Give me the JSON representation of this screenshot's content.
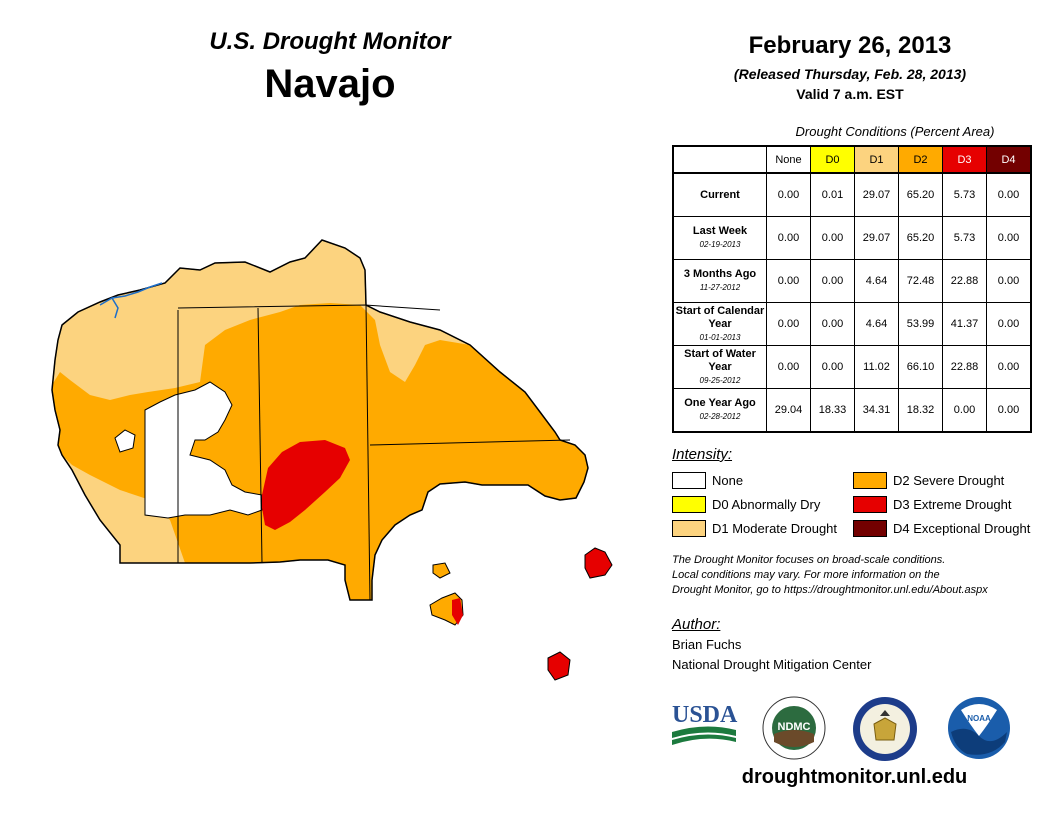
{
  "header": {
    "subtitle": "U.S. Drought Monitor",
    "title": "Navajo",
    "date": "February 26, 2013",
    "released": "(Released Thursday, Feb. 28, 2013)",
    "valid": "Valid 7 a.m. EST"
  },
  "table": {
    "caption": "Drought Conditions (Percent Area)",
    "columns": [
      "None",
      "D0",
      "D1",
      "D2",
      "D3",
      "D4"
    ],
    "column_colors": [
      "#ffffff",
      "#ffff00",
      "#fcd37f",
      "#ffaa00",
      "#e60000",
      "#730000"
    ],
    "rows": [
      {
        "label": "Current",
        "date": "",
        "values": [
          "0.00",
          "0.01",
          "29.07",
          "65.20",
          "5.73",
          "0.00"
        ]
      },
      {
        "label": "Last Week",
        "date": "02-19-2013",
        "values": [
          "0.00",
          "0.00",
          "29.07",
          "65.20",
          "5.73",
          "0.00"
        ]
      },
      {
        "label": "3 Months Ago",
        "date": "11-27-2012",
        "values": [
          "0.00",
          "0.00",
          "4.64",
          "72.48",
          "22.88",
          "0.00"
        ]
      },
      {
        "label": "Start of Calendar Year",
        "date": "01-01-2013",
        "values": [
          "0.00",
          "0.00",
          "4.64",
          "53.99",
          "41.37",
          "0.00"
        ]
      },
      {
        "label": "Start of Water Year",
        "date": "09-25-2012",
        "values": [
          "0.00",
          "0.00",
          "11.02",
          "66.10",
          "22.88",
          "0.00"
        ]
      },
      {
        "label": "One Year Ago",
        "date": "02-28-2012",
        "values": [
          "29.04",
          "18.33",
          "34.31",
          "18.32",
          "0.00",
          "0.00"
        ]
      }
    ]
  },
  "legend": {
    "title": "Intensity:",
    "items": [
      {
        "label": "None",
        "color": "#ffffff"
      },
      {
        "label": "D0 Abnormally Dry",
        "color": "#ffff00"
      },
      {
        "label": "D1 Moderate Drought",
        "color": "#fcd37f"
      },
      {
        "label": "D2 Severe Drought",
        "color": "#ffaa00"
      },
      {
        "label": "D3 Extreme Drought",
        "color": "#e60000"
      },
      {
        "label": "D4 Exceptional Drought",
        "color": "#730000"
      }
    ]
  },
  "note": {
    "line1": "The Drought Monitor focuses on broad-scale conditions.",
    "line2": "Local conditions may vary. For more information on the",
    "line3": "Drought Monitor, go to https://droughtmonitor.unl.edu/About.aspx"
  },
  "author": {
    "title": "Author:",
    "name": "Brian Fuchs",
    "org": "National Drought Mitigation Center"
  },
  "logos": {
    "usda": "USDA",
    "ndmc": "NDMC",
    "noaa": "NOAA"
  },
  "url": "droughtmonitor.unl.edu"
}
